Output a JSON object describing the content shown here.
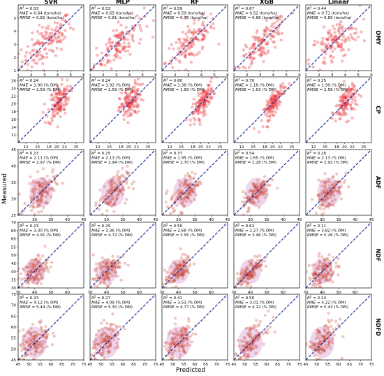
{
  "figure": {
    "xlabel": "Predicted",
    "ylabel": "Measured"
  },
  "chart_data": {
    "type": "scatter",
    "models": [
      "SVR",
      "MLP",
      "RF",
      "XGB",
      "Linear"
    ],
    "point_color": "#e8383d",
    "identity_line_color": "#1f2a9e",
    "density_color": "#d48ac8",
    "rows": [
      {
        "name": "DMY",
        "unit": "tons/ha",
        "xlim": [
          1,
          6
        ],
        "ylim": [
          1,
          6
        ],
        "xticks": [
          "1",
          "2",
          "3",
          "4",
          "5",
          "6"
        ],
        "yticks": [
          "1",
          "2",
          "3",
          "4",
          "5"
        ],
        "show_xticks": true,
        "center": [
          3.2,
          3.1
        ],
        "spread": [
          0.95,
          1.05
        ],
        "stats": [
          {
            "r2": "0.53",
            "mae": "0.64",
            "rmse": "0.82"
          },
          {
            "r2": "0.53",
            "mae": "0.65",
            "rmse": "0.81"
          },
          {
            "r2": "0.59",
            "mae": "0.59",
            "rmse": "0.76"
          },
          {
            "r2": "0.67",
            "mae": "0.52",
            "rmse": "0.68"
          },
          {
            "r2": "0.44",
            "mae": "0.71",
            "rmse": "0.89"
          }
        ]
      },
      {
        "name": "CP",
        "unit": "% DM",
        "xlim": [
          10,
          27
        ],
        "ylim": [
          10,
          27
        ],
        "xticks": [
          "12",
          "15",
          "18",
          "20",
          "22",
          "25"
        ],
        "yticks": [
          "12",
          "14",
          "16",
          "18",
          "20",
          "22",
          "24",
          "26"
        ],
        "show_xticks": true,
        "center": [
          20.5,
          20.5
        ],
        "spread": [
          1.4,
          2.5
        ],
        "stats": [
          {
            "r2": "0.24",
            "mae": "1.90",
            "rmse": "2.59"
          },
          {
            "r2": "0.24",
            "mae": "1.92",
            "rmse": "2.59"
          },
          {
            "r2": "0.60",
            "mae": "1.38",
            "rmse": "1.89"
          },
          {
            "r2": "0.70",
            "mae": "1.18",
            "rmse": "1.63"
          },
          {
            "r2": "0.25",
            "mae": "1.99",
            "rmse": "2.58"
          }
        ]
      },
      {
        "name": "ADF",
        "unit": "% DM",
        "xlim": [
          25,
          45
        ],
        "ylim": [
          25,
          45
        ],
        "xticks": [
          "30",
          "35",
          "40",
          "45"
        ],
        "yticks": [
          "25",
          "30",
          "35",
          "40",
          "45"
        ],
        "show_xticks": true,
        "center": [
          32.0,
          32.0
        ],
        "spread": [
          2.2,
          3.0
        ],
        "stats": [
          {
            "r2": "0.23",
            "mae": "2.11",
            "rmse": "2.97"
          },
          {
            "r2": "0.25",
            "mae": "2.13",
            "rmse": "2.94"
          },
          {
            "r2": "0.37",
            "mae": "1.95",
            "rmse": "2.70"
          },
          {
            "r2": "0.54",
            "mae": "1.65",
            "rmse": "2.28"
          },
          {
            "r2": "0.26",
            "mae": "2.13",
            "rmse": "2.92"
          }
        ]
      },
      {
        "name": "NDF",
        "unit": "% DM",
        "xlim": [
          30,
          70
        ],
        "ylim": [
          30,
          70
        ],
        "xticks": [
          "30",
          "40",
          "50",
          "60"
        ],
        "yticks": [
          "30",
          "35",
          "40",
          "45",
          "50",
          "55",
          "60",
          "65",
          "70"
        ],
        "show_xticks": true,
        "center": [
          40.0,
          40.0
        ],
        "spread": [
          4.0,
          5.0
        ],
        "stats": [
          {
            "r2": "0.23",
            "mae": "3.30",
            "rmse": "4.91"
          },
          {
            "r2": "0.29",
            "mae": "3.36",
            "rmse": "4.72"
          },
          {
            "r2": "0.50",
            "mae": "2.68",
            "rmse": "3.95"
          },
          {
            "r2": "0.62",
            "mae": "2.27",
            "rmse": "3.46"
          },
          {
            "r2": "0.11",
            "mae": "3.82",
            "rmse": "5.26"
          }
        ]
      },
      {
        "name": "NDFD",
        "unit": "% DM",
        "xlim": [
          45,
          75
        ],
        "ylim": [
          45,
          75
        ],
        "xticks": [
          "45",
          "50",
          "55",
          "60",
          "65",
          "70",
          "75"
        ],
        "yticks": [
          "45",
          "50",
          "55",
          "60",
          "65",
          "70",
          "75"
        ],
        "show_xticks": true,
        "center": [
          52.5,
          53.0
        ],
        "spread": [
          3.5,
          4.8
        ],
        "stats": [
          {
            "r2": "0.23",
            "mae": "4.12",
            "rmse": "5.44"
          },
          {
            "r2": "0.27",
            "mae": "4.09",
            "rmse": "5.30"
          },
          {
            "r2": "0.41",
            "mae": "3.53",
            "rmse": "4.77"
          },
          {
            "r2": "0.56",
            "mae": "3.01",
            "rmse": "4.12"
          },
          {
            "r2": "0.24",
            "mae": "4.22",
            "rmse": "5.43"
          }
        ]
      }
    ]
  }
}
